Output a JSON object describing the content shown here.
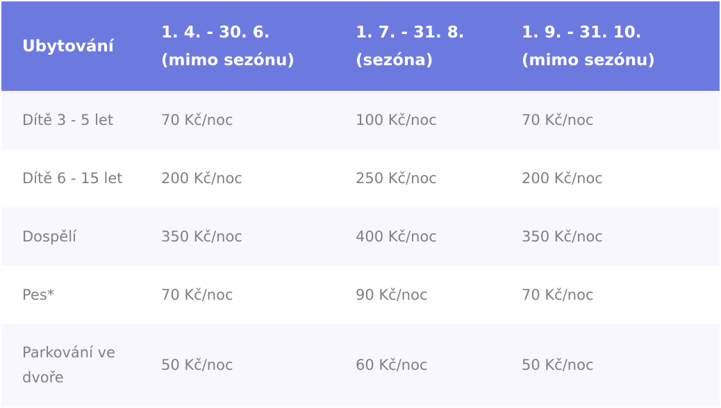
{
  "header": {
    "col0": "Ubytování",
    "col1_line1": "1. 4. - 30. 6.",
    "col1_line2": "(mimo sezónu)",
    "col2_line1": "1. 7. - 31. 8.",
    "col2_line2": "(sezóna)",
    "col3_line1": "1. 9. - 31. 10.",
    "col3_line2": "(mimo sezónu)"
  },
  "rows": [
    {
      "label": "Dítě 3 - 5 let",
      "c1": "70 Kč/noc",
      "c2": "100 Kč/noc",
      "c3": "70 Kč/noc"
    },
    {
      "label": "Dítě 6 - 15 let",
      "c1": "200 Kč/noc",
      "c2": "250 Kč/noc",
      "c3": "200 Kč/noc"
    },
    {
      "label": "Dospělí",
      "c1": "350 Kč/noc",
      "c2": "400 Kč/noc",
      "c3": "350 Kč/noc"
    },
    {
      "label": "Pes*",
      "c1": "70 Kč/noc",
      "c2": "90 Kč/noc",
      "c3": "70 Kč/noc"
    },
    {
      "label": "Parkování ve dvoře",
      "c1": "50 Kč/noc",
      "c2": "60 Kč/noc",
      "c3": "50 Kč/noc"
    }
  ],
  "colors": {
    "header_bg": "#6c7ae0",
    "row_alt_bg": "#f8f6ff",
    "text": "#808080"
  }
}
